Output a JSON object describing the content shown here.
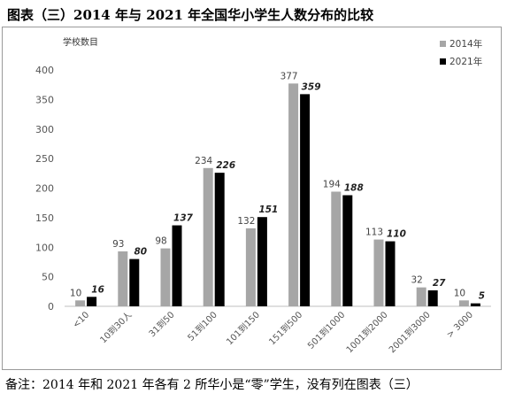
{
  "title": "图表（三）2014 年与 2021 年全国华小学生人数分布的比较",
  "footnote": "备注：2014 年和 2021 年各有 2 所华小是“零”学生，没有列在图表（三）",
  "colors": {
    "series_2014": "#a6a6a6",
    "series_2021": "#000000",
    "axis": "#bfbfbf",
    "tick_text": "#555555"
  },
  "chart_data": {
    "type": "bar",
    "title": "",
    "xlabel": "",
    "ylabel": "学校数目",
    "ylim": [
      0,
      400
    ],
    "yticks": [
      0,
      50,
      100,
      150,
      200,
      250,
      300,
      350,
      400
    ],
    "grid": false,
    "legend_position": "top-right",
    "categories": [
      "<10",
      "10到30人",
      "31到50",
      "51到100",
      "101到150",
      "151到500",
      "501到1000",
      "1001到2000",
      "2001到3000",
      "> 3000"
    ],
    "series": [
      {
        "name": "2014年",
        "values": [
          10,
          93,
          98,
          234,
          132,
          377,
          194,
          113,
          32,
          10
        ],
        "label_style": "normal"
      },
      {
        "name": "2021年",
        "values": [
          16,
          80,
          137,
          226,
          151,
          359,
          188,
          110,
          27,
          5
        ],
        "label_style": "bold-italic"
      }
    ]
  }
}
